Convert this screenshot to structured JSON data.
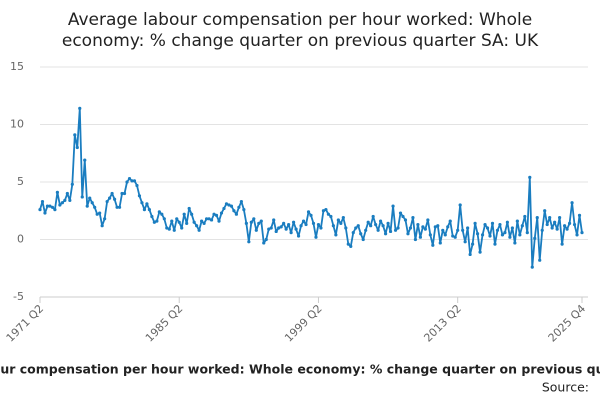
{
  "chart_data": {
    "type": "line",
    "title": [
      "Average labour compensation per hour worked: Whole",
      "economy: % change quarter on previous quarter SA: UK"
    ],
    "caption": "Average labour compensation per hour worked: Whole economy: % change quarter on previous quarter SA: UK",
    "source": "Source:",
    "categories": [
      "1971 Q2",
      null,
      null,
      null,
      null,
      null,
      null,
      null,
      null,
      null,
      null,
      null,
      null,
      null,
      null,
      null,
      null,
      null,
      null,
      null,
      null,
      null,
      null,
      null,
      null,
      null,
      null,
      null,
      null,
      null,
      null,
      null,
      null,
      null,
      null,
      null,
      null,
      null,
      null,
      null,
      null,
      null,
      null,
      null,
      null,
      null,
      null,
      null,
      null,
      null,
      null,
      null,
      null,
      null,
      null,
      null,
      "1985 Q2",
      null,
      null,
      null,
      null,
      null,
      null,
      null,
      null,
      null,
      null,
      null,
      null,
      null,
      null,
      null,
      null,
      null,
      null,
      null,
      null,
      null,
      null,
      null,
      null,
      null,
      null,
      null,
      null,
      null,
      null,
      null,
      null,
      null,
      null,
      null,
      null,
      null,
      null,
      null,
      null,
      null,
      null,
      null,
      null,
      null,
      null,
      null,
      null,
      null,
      null,
      null,
      null,
      null,
      null,
      null,
      "1999 Q2",
      null,
      null,
      null,
      null,
      null,
      null,
      null,
      null,
      null,
      null,
      null,
      null,
      null,
      null,
      null,
      null,
      null,
      null,
      null,
      null,
      null,
      null,
      null,
      null,
      null,
      null,
      null,
      null,
      null,
      null,
      null,
      null,
      null,
      null,
      null,
      null,
      null,
      null,
      null,
      null,
      null,
      null,
      null,
      null,
      null,
      null,
      null,
      null,
      null,
      null,
      null,
      null,
      null,
      null,
      null,
      "2013 Q2",
      null,
      null,
      null,
      null,
      null,
      null,
      null,
      null,
      null,
      null,
      null,
      null,
      null,
      null,
      null,
      null,
      null,
      null,
      null,
      null,
      null,
      null,
      null,
      null,
      null,
      null,
      null,
      null,
      null,
      null,
      null,
      null,
      null,
      null,
      null,
      null,
      null,
      null,
      null,
      null,
      null,
      null,
      null,
      null,
      null,
      null,
      null,
      null,
      null,
      "2025 Q4"
    ],
    "series": [
      {
        "name": "% change",
        "color": "#1a7dc0",
        "values": [
          2.6,
          3.3,
          2.3,
          2.9,
          2.9,
          2.8,
          2.6,
          4.1,
          3.0,
          3.2,
          3.4,
          4.0,
          3.4,
          4.8,
          9.1,
          8.0,
          11.4,
          3.7,
          6.9,
          2.9,
          3.6,
          3.2,
          2.8,
          2.2,
          2.3,
          1.2,
          1.8,
          3.3,
          3.6,
          4.0,
          3.5,
          2.8,
          2.8,
          4.0,
          4.0,
          5.0,
          5.3,
          5.1,
          5.1,
          4.7,
          3.8,
          3.2,
          2.6,
          3.1,
          2.6,
          2.0,
          1.5,
          1.6,
          2.4,
          2.2,
          1.8,
          1.0,
          0.9,
          1.6,
          0.8,
          1.8,
          1.5,
          1.0,
          2.2,
          1.4,
          2.7,
          2.2,
          1.5,
          1.2,
          0.8,
          1.6,
          1.4,
          1.8,
          1.8,
          1.7,
          2.2,
          2.1,
          1.6,
          2.3,
          2.7,
          3.1,
          3.0,
          2.9,
          2.5,
          2.2,
          2.8,
          3.3,
          2.6,
          1.4,
          -0.2,
          1.5,
          1.8,
          0.8,
          1.4,
          1.6,
          -0.3,
          0.0,
          0.9,
          1.0,
          1.7,
          0.7,
          1.0,
          1.1,
          1.4,
          0.9,
          1.3,
          0.6,
          1.5,
          0.9,
          0.3,
          1.2,
          1.6,
          1.3,
          2.4,
          2.1,
          1.4,
          0.2,
          1.3,
          1.0,
          2.5,
          2.6,
          2.2,
          2.0,
          1.2,
          0.4,
          1.7,
          1.4,
          1.9,
          1.0,
          -0.4,
          -0.6,
          0.6,
          1.0,
          1.2,
          0.5,
          0.0,
          0.8,
          1.5,
          1.2,
          2.0,
          1.3,
          0.8,
          1.6,
          1.2,
          0.5,
          1.4,
          0.7,
          2.9,
          0.8,
          1.0,
          2.3,
          2.0,
          1.7,
          0.5,
          1.0,
          1.9,
          0.0,
          1.3,
          0.2,
          1.1,
          0.9,
          1.7,
          0.4,
          -0.5,
          1.1,
          1.2,
          -0.3,
          0.8,
          0.4,
          1.1,
          1.6,
          0.3,
          0.2,
          0.8,
          3.0,
          0.8,
          -0.2,
          1.0,
          -1.3,
          -0.4,
          1.4,
          0.5,
          -1.1,
          0.4,
          1.3,
          1.0,
          0.3,
          1.4,
          -0.4,
          0.8,
          1.3,
          0.4,
          0.6,
          1.5,
          0.2,
          1.0,
          -0.3,
          1.6,
          0.4,
          1.2,
          2.0,
          0.6,
          5.4,
          -2.4,
          0.1,
          1.9,
          -1.8,
          0.8,
          2.5,
          1.3,
          1.9,
          1.0,
          1.5,
          0.9,
          1.9,
          -0.4,
          1.2,
          0.9,
          1.4,
          3.2,
          1.3,
          0.4,
          2.1,
          0.6
        ]
      }
    ],
    "ylim": [
      -5,
      15
    ],
    "yticks": [
      -5,
      0,
      5,
      10,
      15
    ],
    "grid": true
  }
}
